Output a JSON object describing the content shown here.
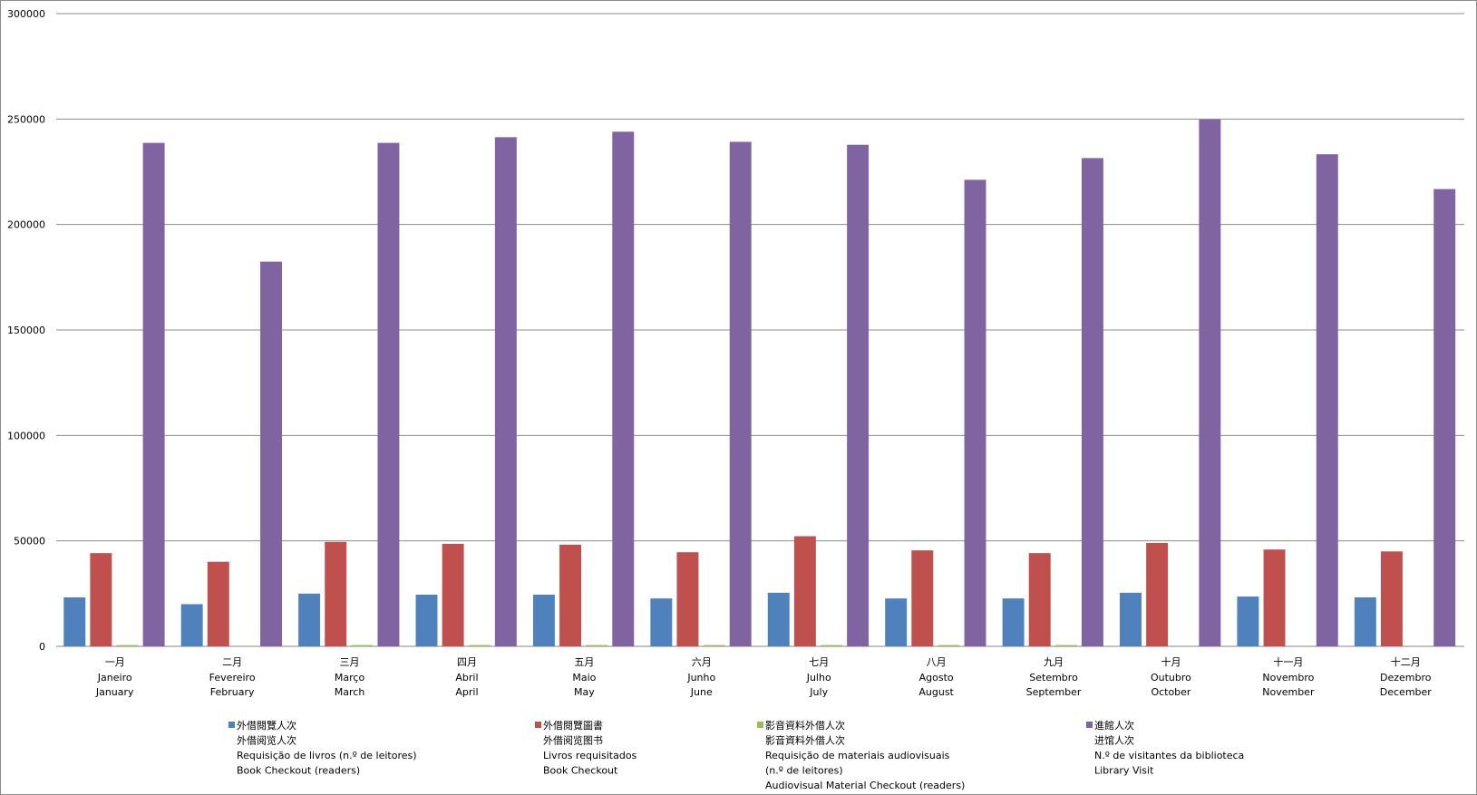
{
  "chart_data": {
    "type": "bar",
    "title": "",
    "xlabel": "",
    "ylabel": "",
    "ylim": [
      0,
      300000
    ],
    "yticks": [
      0,
      50000,
      100000,
      150000,
      200000,
      250000,
      300000
    ],
    "grid": true,
    "legend_position": "bottom",
    "categories": [
      {
        "zh": "一月",
        "pt": "Janeiro",
        "en": "January"
      },
      {
        "zh": "二月",
        "pt": "Fevereiro",
        "en": "February"
      },
      {
        "zh": "三月",
        "pt": "Março",
        "en": "March"
      },
      {
        "zh": "四月",
        "pt": "Abril",
        "en": "April"
      },
      {
        "zh": "五月",
        "pt": "Maio",
        "en": "May"
      },
      {
        "zh": "六月",
        "pt": "Junho",
        "en": "June"
      },
      {
        "zh": "七月",
        "pt": "Julho",
        "en": "July"
      },
      {
        "zh": "八月",
        "pt": "Agosto",
        "en": "August"
      },
      {
        "zh": "九月",
        "pt": "Setembro",
        "en": "September"
      },
      {
        "zh": "十月",
        "pt": "Outubro",
        "en": "October"
      },
      {
        "zh": "十一月",
        "pt": "Novembro",
        "en": "November"
      },
      {
        "zh": "十二月",
        "pt": "Dezembro",
        "en": "December"
      }
    ],
    "series": [
      {
        "name": [
          "外借閱覽人次",
          "外借阅览人次",
          "Requisição de livros (n.º de leitores)",
          "Book Checkout (readers)"
        ],
        "color": "#4f81bd",
        "values": [
          23200,
          20000,
          25000,
          24500,
          24500,
          22700,
          25400,
          22700,
          22700,
          25400,
          23600,
          23200
        ]
      },
      {
        "name": [
          "外借閱覽圖書",
          "外借阅览图书",
          "Livros requisitados",
          "Book Checkout"
        ],
        "color": "#c0504d",
        "values": [
          44200,
          40100,
          49500,
          48600,
          48200,
          44600,
          52200,
          45500,
          44200,
          49000,
          45900,
          45000
        ]
      },
      {
        "name": [
          "影音資料外借人次",
          "影音資料外借人次",
          "Requisição de materiais audiovisuais",
          "(n.º de leitores)",
          "Audiovisual Material Checkout (readers)"
        ],
        "color": "#9bbb59",
        "values": [
          600,
          0,
          600,
          600,
          600,
          600,
          600,
          600,
          600,
          0,
          0,
          0
        ]
      },
      {
        "name": [
          "進館人次",
          "进馆人次",
          "N.º de visitantes da biblioteca",
          "Library Visit"
        ],
        "color": "#8064a2",
        "values": [
          238700,
          182400,
          238700,
          241400,
          244000,
          239200,
          237800,
          221200,
          231500,
          249800,
          233300,
          216800
        ]
      }
    ]
  }
}
